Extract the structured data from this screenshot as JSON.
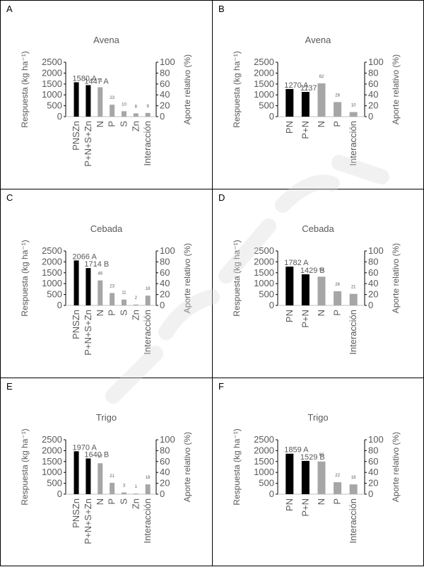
{
  "colors": {
    "black_bar": "#000000",
    "gray_bar": "#a6a6a6",
    "axis": "#000000",
    "text": "#595959"
  },
  "left_axis_ticks": [
    0,
    500,
    1000,
    1500,
    2000,
    2500
  ],
  "right_axis_ticks": [
    0,
    20,
    40,
    60,
    80,
    100
  ],
  "chart_data": [
    {
      "panel": "A",
      "type": "bar",
      "title": "Avena",
      "ylabel": "Respuesta (kg ha⁻¹)",
      "y2label": "Aporte relativo (%)",
      "ylim": [
        0,
        2500
      ],
      "y2lim": [
        0,
        100
      ],
      "categories": [
        "PNSZn",
        "P+N+S+Zn",
        "N",
        "P",
        "S",
        "Zn",
        "Interacción"
      ],
      "values": [
        1580,
        1447,
        1350,
        550,
        250,
        150,
        170
      ],
      "bar_types": [
        "total",
        "total",
        "part",
        "part",
        "part",
        "part",
        "part"
      ],
      "labels": [
        "1580 A",
        "1447 A",
        "51",
        "23",
        "10",
        "8",
        "9"
      ]
    },
    {
      "panel": "B",
      "type": "bar",
      "title": "Avena",
      "ylabel": "Respuesta (kg ha⁻¹)",
      "y2label": "Aporte relativo (%)",
      "ylim": [
        0,
        2500
      ],
      "y2lim": [
        0,
        100
      ],
      "categories": [
        "PN",
        "P+N",
        "N",
        "P",
        "Interacción"
      ],
      "values": [
        1270,
        1137,
        1530,
        670,
        210
      ],
      "bar_types": [
        "total",
        "total",
        "part",
        "part",
        "part"
      ],
      "labels": [
        "1270 A",
        "1137 A",
        "62",
        "28",
        "10"
      ]
    },
    {
      "panel": "C",
      "type": "bar",
      "title": "Cebada",
      "ylabel": "Respuesta (kg ha⁻¹)",
      "y2label": "Aporte relativo (%)",
      "ylim": [
        0,
        2500
      ],
      "y2lim": [
        0,
        100
      ],
      "categories": [
        "PNSZn",
        "P+N+S+Zn",
        "N",
        "P",
        "S",
        "Zn",
        "Interacción"
      ],
      "values": [
        2066,
        1714,
        1150,
        570,
        270,
        40,
        450
      ],
      "bar_types": [
        "total",
        "total",
        "part",
        "part",
        "part",
        "part",
        "part"
      ],
      "labels": [
        "2066 A",
        "1714 B",
        "46",
        "23",
        "11",
        "2",
        "18"
      ]
    },
    {
      "panel": "D",
      "type": "bar",
      "title": "Cebada",
      "ylabel": "Respuesta (kg ha⁻¹)",
      "y2label": "Aporte relativo (%)",
      "ylim": [
        0,
        2500
      ],
      "y2lim": [
        0,
        100
      ],
      "categories": [
        "PN",
        "P+N",
        "N",
        "P",
        "Interacción"
      ],
      "values": [
        1782,
        1429,
        1320,
        650,
        530
      ],
      "bar_types": [
        "total",
        "total",
        "part",
        "part",
        "part"
      ],
      "labels": [
        "1782 A",
        "1429 B",
        "53",
        "26",
        "21"
      ]
    },
    {
      "panel": "E",
      "type": "bar",
      "title": "Trigo",
      "ylabel": "Respuesta (kg ha⁻¹)",
      "y2label": "Aporte relativo (%)",
      "ylim": [
        0,
        2500
      ],
      "y2lim": [
        0,
        100
      ],
      "categories": [
        "PNSZn",
        "P+N+S+Zn",
        "N",
        "P",
        "S",
        "Zn",
        "Interacción"
      ],
      "values": [
        1970,
        1640,
        1420,
        520,
        80,
        30,
        450
      ],
      "bar_types": [
        "total",
        "total",
        "part",
        "part",
        "part",
        "part",
        "part"
      ],
      "labels": [
        "1970 A",
        "1640 B",
        "57",
        "21",
        "3",
        "1",
        "18"
      ]
    },
    {
      "panel": "F",
      "type": "bar",
      "title": "Trigo",
      "ylabel": "Respuesta (kg ha⁻¹)",
      "y2label": "Aporte relativo (%)",
      "ylim": [
        0,
        2500
      ],
      "y2lim": [
        0,
        100
      ],
      "categories": [
        "PN",
        "P+N",
        "N",
        "P",
        "Interacción"
      ],
      "values": [
        1859,
        1529,
        1500,
        550,
        450
      ],
      "bar_types": [
        "total",
        "total",
        "part",
        "part",
        "part"
      ],
      "labels": [
        "1859 A",
        "1529 B",
        "60",
        "22",
        "18"
      ]
    }
  ]
}
